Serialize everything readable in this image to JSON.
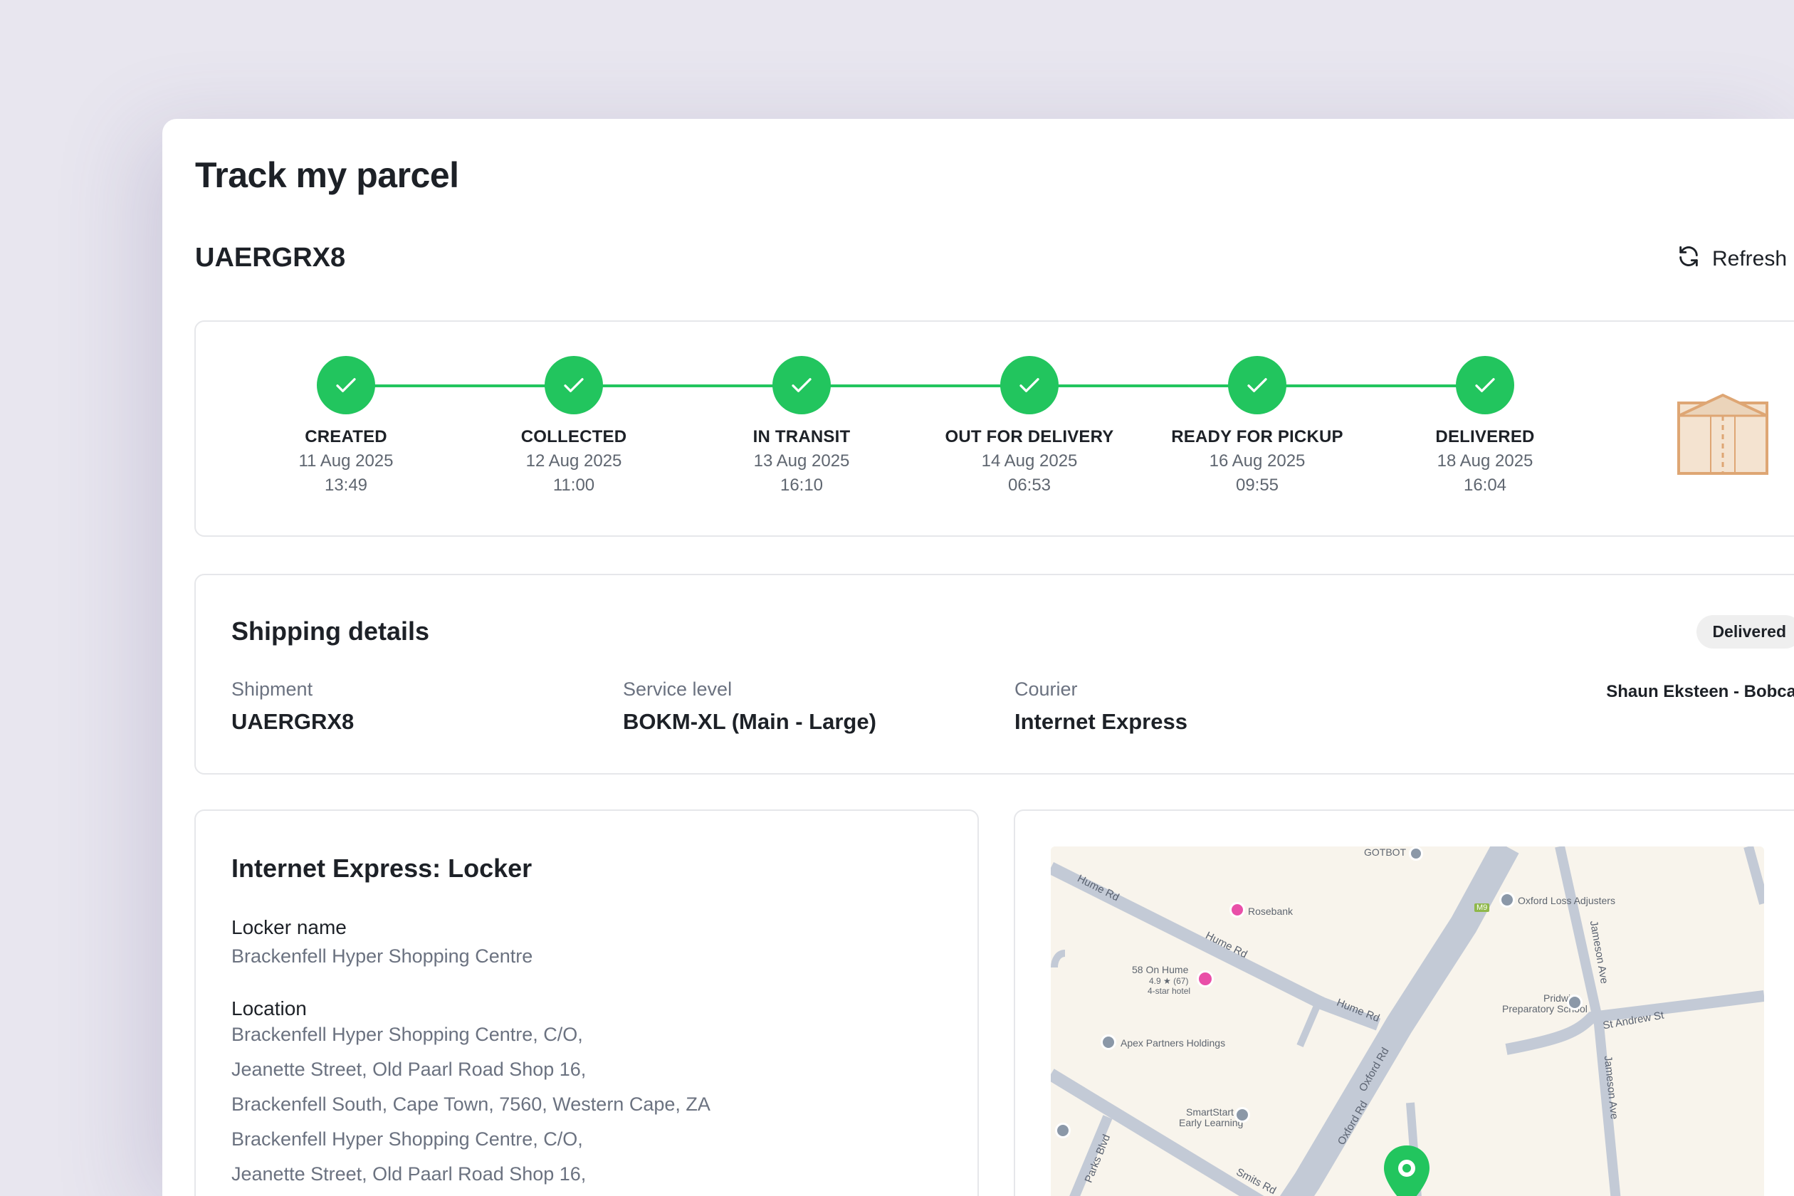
{
  "header": {
    "title": "Track my parcel",
    "tracking_id": "UAERGRX8",
    "refresh_label": "Refresh"
  },
  "progress": {
    "steps": [
      {
        "name": "CREATED",
        "date": "11 Aug 2025",
        "time": "13:49"
      },
      {
        "name": "COLLECTED",
        "date": "12 Aug 2025",
        "time": "11:00"
      },
      {
        "name": "IN TRANSIT",
        "date": "13 Aug 2025",
        "time": "16:10"
      },
      {
        "name": "OUT FOR DELIVERY",
        "date": "14 Aug 2025",
        "time": "06:53"
      },
      {
        "name": "READY FOR PICKUP",
        "date": "16 Aug 2025",
        "time": "09:55"
      },
      {
        "name": "DELIVERED",
        "date": "18 Aug 2025",
        "time": "16:04"
      }
    ],
    "accent_color": "#22c55e"
  },
  "shipping": {
    "title": "Shipping details",
    "status": "Delivered",
    "shipment_label": "Shipment",
    "shipment_value": "UAERGRX8",
    "service_label": "Service level",
    "service_value": "BOKM-XL (Main - Large)",
    "courier_label": "Courier",
    "courier_value": "Internet Express",
    "driver": "Shaun Eksteen - Bobcat"
  },
  "locker": {
    "title": "Internet Express: Locker",
    "name_label": "Locker name",
    "name_value": "Brackenfell Hyper Shopping Centre",
    "location_label": "Location",
    "location_lines": [
      "Brackenfell Hyper Shopping Centre, C/O,",
      "Jeanette Street, Old Paarl Road Shop 16,",
      "Brackenfell South, Cape Town, 7560, Western Cape, ZA",
      "Brackenfell Hyper Shopping Centre, C/O,",
      "Jeanette Street, Old Paarl Road Shop 16,"
    ]
  },
  "map": {
    "places": {
      "gotbot": "GOTBOT",
      "rosebank": "Rosebank",
      "oxford_loss": "Oxford Loss Adjusters",
      "on_hume": "58 On Hume",
      "on_hume_rating": "4.9 ★ (67)",
      "on_hume_type": "4-star hotel",
      "pridwin_1": "Pridwin",
      "pridwin_2": "Preparatory School",
      "apex": "Apex Partners Holdings",
      "smartstart_1": "SmartStart",
      "smartstart_2": "Early Learning"
    },
    "roads": {
      "hume_1": "Hume Rd",
      "hume_2": "Hume Rd",
      "hume_3": "Hume Rd",
      "oxford_1": "Oxford Rd",
      "oxford_2": "Oxford Rd",
      "st_andrew": "St Andrew St",
      "jameson_1": "Jameson Ave",
      "jameson_2": "Jameson Ave",
      "parks": "Parks Blvd",
      "smits": "Smits Rd",
      "m9": "M9"
    }
  }
}
